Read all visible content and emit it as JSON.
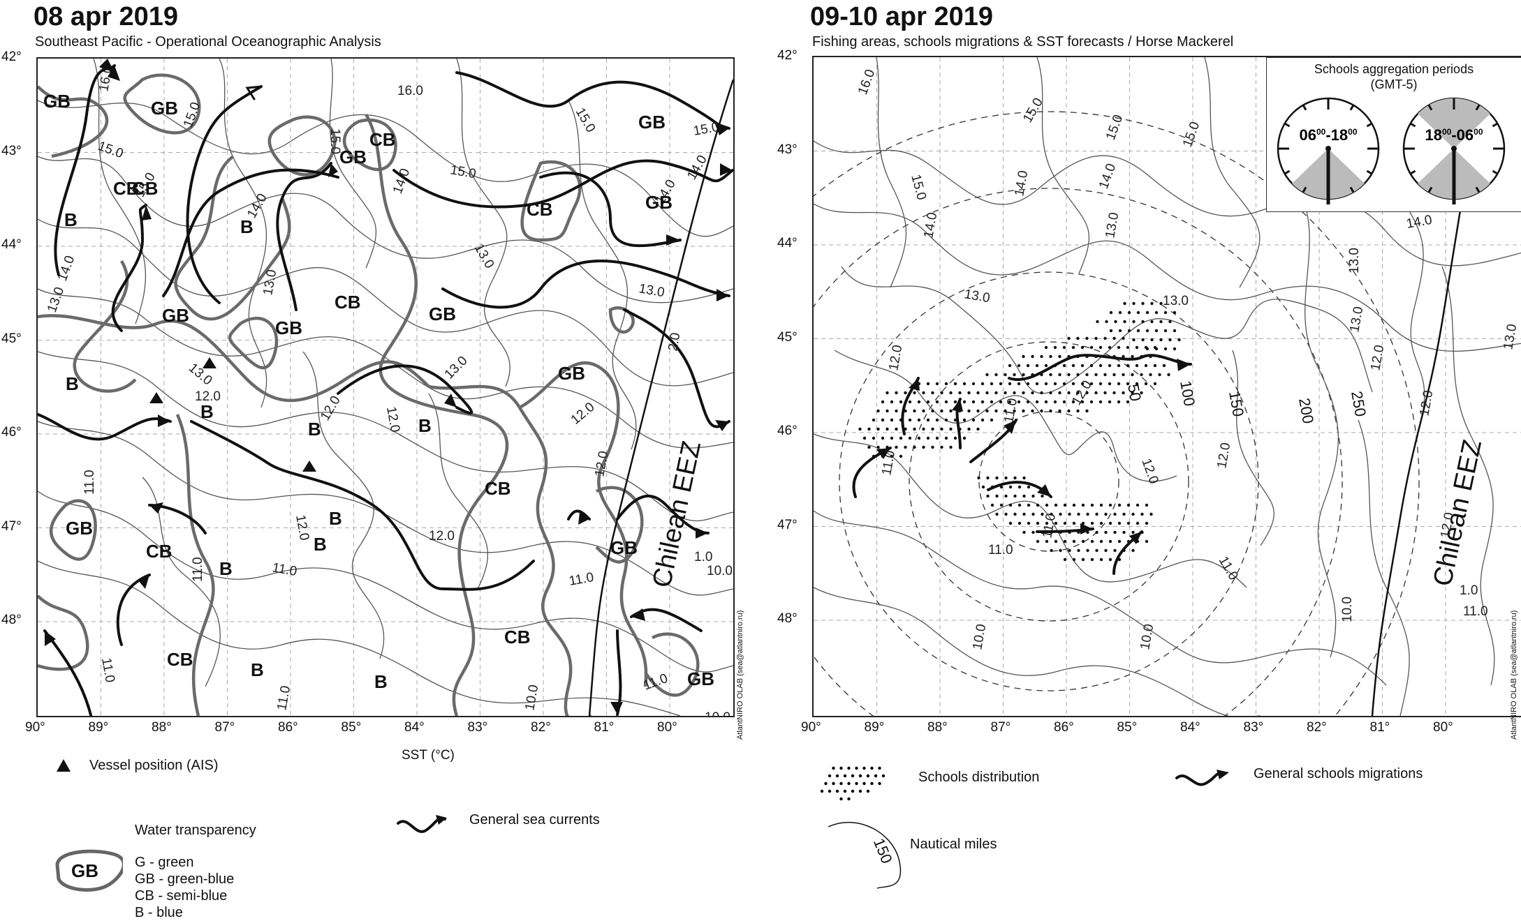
{
  "left": {
    "title": "08 apr 2019",
    "subtitle": "Southeast Pacific - Operational Oceanographic Analysis",
    "lat_labels": [
      "42°",
      "43°",
      "44°",
      "45°",
      "46°",
      "47°",
      "48°"
    ],
    "lon_labels": [
      "90°",
      "89°",
      "88°",
      "87°",
      "86°",
      "85°",
      "84°",
      "83°",
      "82°",
      "81°",
      "80°"
    ],
    "xaxis_title": "SST (°C)",
    "zones": [
      {
        "t": "GB"
      },
      {
        "t": "GB"
      },
      {
        "t": "CB"
      },
      {
        "t": "GB"
      },
      {
        "t": "CB"
      },
      {
        "t": "GB"
      },
      {
        "t": "CB"
      },
      {
        "t": "B"
      },
      {
        "t": "B"
      },
      {
        "t": "CB"
      },
      {
        "t": "GB"
      },
      {
        "t": "GB"
      },
      {
        "t": "GB"
      },
      {
        "t": "CB"
      },
      {
        "t": "GB"
      },
      {
        "t": "GB"
      },
      {
        "t": "B"
      },
      {
        "t": "B"
      },
      {
        "t": "B"
      },
      {
        "t": "B"
      },
      {
        "t": "CB"
      },
      {
        "t": "GB"
      },
      {
        "t": "CB"
      },
      {
        "t": "B"
      },
      {
        "t": "B"
      },
      {
        "t": "CB"
      },
      {
        "t": "B"
      },
      {
        "t": "CB"
      },
      {
        "t": "B"
      },
      {
        "t": "GB"
      },
      {
        "t": "GB"
      },
      {
        "t": "B"
      }
    ],
    "isotherms": [
      "16.0",
      "16.0",
      "15.0",
      "15.0",
      "15.0",
      "15.0",
      "15.0",
      "15.0",
      "15.0",
      "14.0",
      "14.0",
      "14.0",
      "14.0",
      "14.0",
      "13.0",
      "13.0",
      "13.0",
      "13.0",
      "13.0",
      "13.0",
      "12.0",
      "12.0",
      "12.0",
      "12.0",
      "12.0",
      "12.0",
      "12.0",
      "11.0",
      "11.0",
      "11.0",
      "11.0",
      "11.0",
      "11.0",
      "11.0",
      "10.0",
      "10.0",
      "10.0",
      "1.0",
      "2.0",
      "13.0"
    ],
    "eez_label": "Chilean EEZ",
    "credit": "AtlantNIRO OLAB (sea@atlantniro.ru)",
    "legend": {
      "vessel": "Vessel position (AIS)",
      "currents": "General sea currents",
      "transparency_title": "Water transparency",
      "transparency_sample": "GB",
      "transparency_items": [
        "G - green",
        "GB - green-blue",
        "CB - semi-blue",
        "B - blue"
      ]
    }
  },
  "right": {
    "title": "09-10 apr 2019",
    "subtitle": "Fishing areas, schools migrations & SST forecasts / Horse Mackerel",
    "lat_labels": [
      "42°",
      "43°",
      "44°",
      "45°",
      "46°",
      "47°",
      "48°"
    ],
    "lon_labels": [
      "90°",
      "89°",
      "88°",
      "87°",
      "86°",
      "85°",
      "84°",
      "83°",
      "82°",
      "81°",
      "80°"
    ],
    "isotherms": [
      "16.0",
      "15.0",
      "15.0",
      "15.0",
      "15.0",
      "14.0",
      "14.0",
      "14.0",
      "14.0",
      "13.0",
      "13.0",
      "13.0",
      "13.0",
      "13.0",
      "12.0",
      "12.0",
      "12.0",
      "12.0",
      "12.0",
      "12.0",
      "11.0",
      "11.0",
      "11.0",
      "11.0",
      "11.0",
      "10.0",
      "10.0",
      "10.0",
      "11.0",
      "1.0",
      "12.0",
      "13.0"
    ],
    "distance_labels": [
      "50",
      "100",
      "150",
      "200",
      "250"
    ],
    "eez_label": "Chilean EEZ",
    "credit": "AtlantNIRO OLAB (sea@atlantniro.ru)",
    "clock": {
      "title": "Schools aggregation periods",
      "tz": "(GMT-5)",
      "period1": {
        "from": "06",
        "to": "18",
        "sup": "00"
      },
      "period2": {
        "from": "18",
        "to": "06",
        "sup": "00"
      }
    },
    "legend": {
      "schools": "Schools distribution",
      "migrations": "General schools migrations",
      "nm_sample": "150",
      "nautical": "Nautical miles"
    }
  }
}
